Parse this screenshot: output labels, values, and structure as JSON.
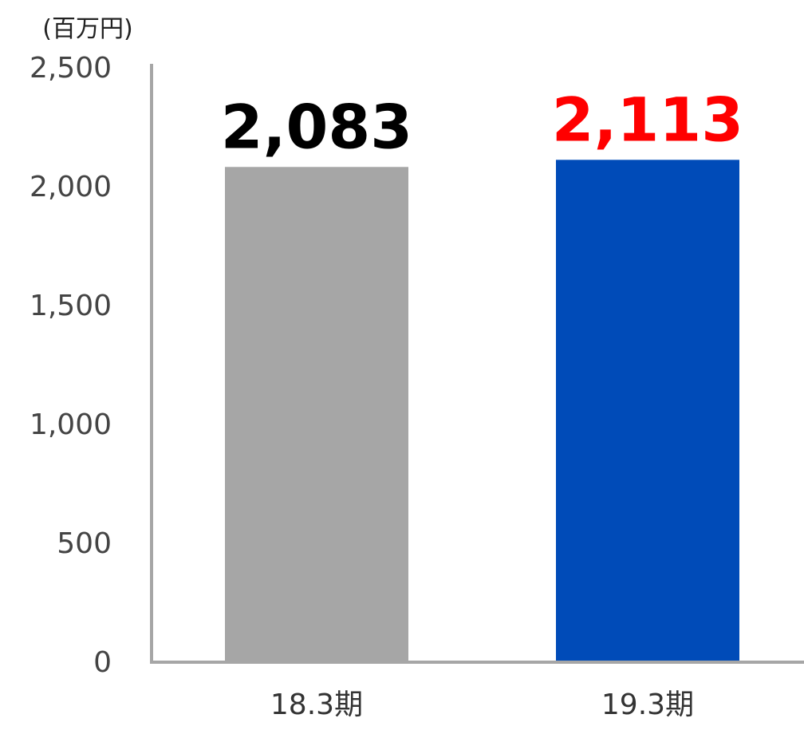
{
  "chart_data": {
    "type": "bar",
    "unit_label": "(百万円)",
    "categories": [
      "18.3期",
      "19.3期"
    ],
    "values": [
      2083,
      2113
    ],
    "value_labels": [
      "2,083",
      "2,113"
    ],
    "bar_colors": [
      "#a6a6a6",
      "#004bb8"
    ],
    "value_label_colors": [
      "#000000",
      "#ff0000"
    ],
    "axis_color": "#a6a6a6",
    "ylim": [
      0,
      2500
    ],
    "yticks": [
      0,
      500,
      1000,
      1500,
      2000,
      2500
    ],
    "ytick_labels": [
      "0",
      "500",
      "1,000",
      "1,500",
      "2,000",
      "2,500"
    ],
    "grid": false,
    "legend": "none"
  }
}
